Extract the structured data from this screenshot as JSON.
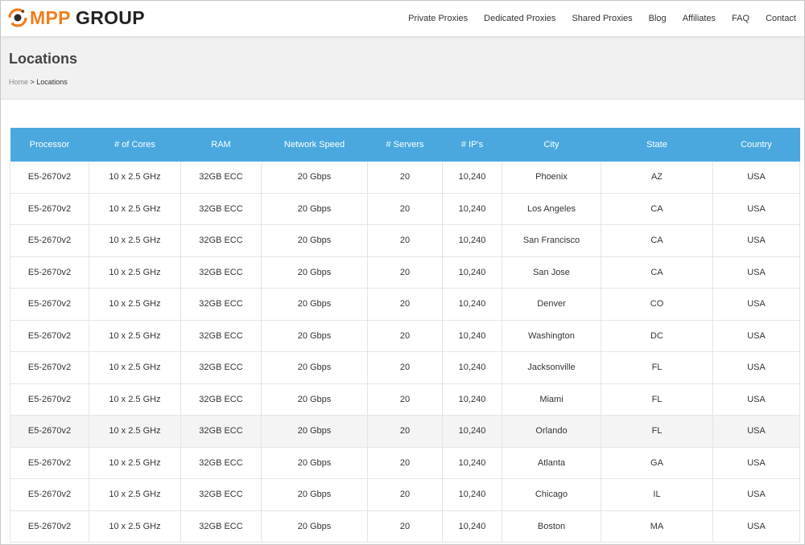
{
  "logo": {
    "mpp": "MPP",
    "group": " GROUP"
  },
  "nav": [
    "Private Proxies",
    "Dedicated Proxies",
    "Shared Proxies",
    "Blog",
    "Affiliates",
    "FAQ",
    "Contact"
  ],
  "page": {
    "title": "Locations",
    "breadcrumb_home": "Home",
    "breadcrumb_sep": " > ",
    "breadcrumb_current": "Locations"
  },
  "colors": {
    "accent": "#4aa8de",
    "brand": "#f07e1d"
  },
  "table": {
    "headers": [
      "Processor",
      "# of Cores",
      "RAM",
      "Network Speed",
      "# Servers",
      "# IP's",
      "City",
      "State",
      "Country"
    ],
    "rows": [
      [
        "E5-2670v2",
        "10 x 2.5 GHz",
        "32GB ECC",
        "20 Gbps",
        "20",
        "10,240",
        "Phoenix",
        "AZ",
        "USA"
      ],
      [
        "E5-2670v2",
        "10 x 2.5 GHz",
        "32GB ECC",
        "20 Gbps",
        "20",
        "10,240",
        "Los Angeles",
        "CA",
        "USA"
      ],
      [
        "E5-2670v2",
        "10 x 2.5 GHz",
        "32GB ECC",
        "20 Gbps",
        "20",
        "10,240",
        "San Francisco",
        "CA",
        "USA"
      ],
      [
        "E5-2670v2",
        "10 x 2.5 GHz",
        "32GB ECC",
        "20 Gbps",
        "20",
        "10,240",
        "San Jose",
        "CA",
        "USA"
      ],
      [
        "E5-2670v2",
        "10 x 2.5 GHz",
        "32GB ECC",
        "20 Gbps",
        "20",
        "10,240",
        "Denver",
        "CO",
        "USA"
      ],
      [
        "E5-2670v2",
        "10 x 2.5 GHz",
        "32GB ECC",
        "20 Gbps",
        "20",
        "10,240",
        "Washington",
        "DC",
        "USA"
      ],
      [
        "E5-2670v2",
        "10 x 2.5 GHz",
        "32GB ECC",
        "20 Gbps",
        "20",
        "10,240",
        "Jacksonville",
        "FL",
        "USA"
      ],
      [
        "E5-2670v2",
        "10 x 2.5 GHz",
        "32GB ECC",
        "20 Gbps",
        "20",
        "10,240",
        "Miami",
        "FL",
        "USA"
      ],
      [
        "E5-2670v2",
        "10 x 2.5 GHz",
        "32GB ECC",
        "20 Gbps",
        "20",
        "10,240",
        "Orlando",
        "FL",
        "USA"
      ],
      [
        "E5-2670v2",
        "10 x 2.5 GHz",
        "32GB ECC",
        "20 Gbps",
        "20",
        "10,240",
        "Atlanta",
        "GA",
        "USA"
      ],
      [
        "E5-2670v2",
        "10 x 2.5 GHz",
        "32GB ECC",
        "20 Gbps",
        "20",
        "10,240",
        "Chicago",
        "IL",
        "USA"
      ],
      [
        "E5-2670v2",
        "10 x 2.5 GHz",
        "32GB ECC",
        "20 Gbps",
        "20",
        "10,240",
        "Boston",
        "MA",
        "USA"
      ]
    ],
    "highlighted_row": 8
  }
}
